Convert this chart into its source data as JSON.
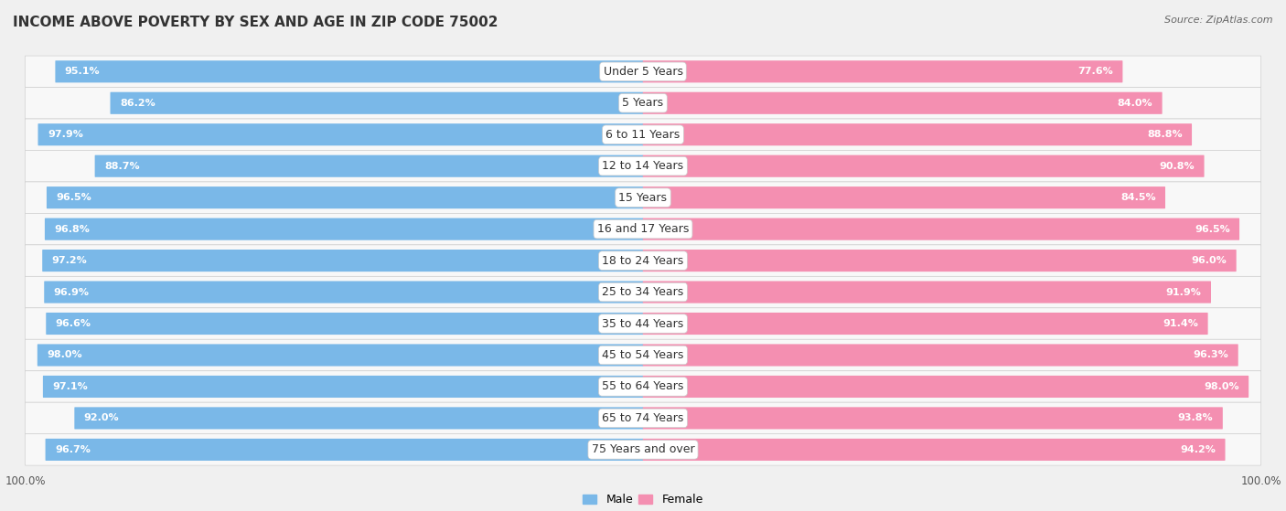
{
  "title": "INCOME ABOVE POVERTY BY SEX AND AGE IN ZIP CODE 75002",
  "source": "Source: ZipAtlas.com",
  "categories": [
    "Under 5 Years",
    "5 Years",
    "6 to 11 Years",
    "12 to 14 Years",
    "15 Years",
    "16 and 17 Years",
    "18 to 24 Years",
    "25 to 34 Years",
    "35 to 44 Years",
    "45 to 54 Years",
    "55 to 64 Years",
    "65 to 74 Years",
    "75 Years and over"
  ],
  "male_values": [
    95.1,
    86.2,
    97.9,
    88.7,
    96.5,
    96.8,
    97.2,
    96.9,
    96.6,
    98.0,
    97.1,
    92.0,
    96.7
  ],
  "female_values": [
    77.6,
    84.0,
    88.8,
    90.8,
    84.5,
    96.5,
    96.0,
    91.9,
    91.4,
    96.3,
    98.0,
    93.8,
    94.2
  ],
  "male_color": "#7ab8e8",
  "female_color": "#f48fb1",
  "male_color_light": "#aed4f0",
  "female_color_light": "#f8bbd0",
  "row_bg_color": "#ffffff",
  "outer_bg_color": "#f0f0f0",
  "bar_row_bg": "#e8e8e8",
  "title_fontsize": 11,
  "label_fontsize": 9,
  "tick_fontsize": 8.5,
  "source_fontsize": 8,
  "value_fontsize": 8
}
